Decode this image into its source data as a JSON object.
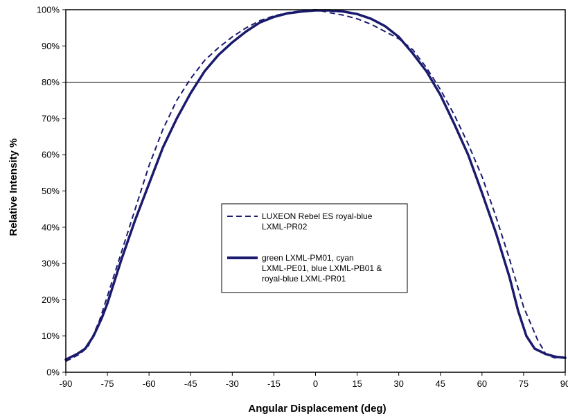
{
  "chart_data": {
    "type": "line",
    "xlabel": "Angular Displacement (deg)",
    "ylabel": "Relative Intensity %",
    "xlim": [
      -90,
      90
    ],
    "ylim": [
      0,
      100
    ],
    "x_ticks": [
      -90,
      -75,
      -60,
      -45,
      -30,
      -15,
      0,
      15,
      30,
      45,
      60,
      75,
      90
    ],
    "x_tick_labels": [
      "-90",
      "-75",
      "-60",
      "-45",
      "-30",
      "-15",
      "0",
      "15",
      "30",
      "45",
      "60",
      "75",
      "90"
    ],
    "y_ticks": [
      0,
      10,
      20,
      30,
      40,
      50,
      60,
      70,
      80,
      90,
      100
    ],
    "y_tick_labels": [
      "0%",
      "10%",
      "20%",
      "30%",
      "40%",
      "50%",
      "60%",
      "70%",
      "80%",
      "90%",
      "100%"
    ],
    "gridlines_y": [
      80
    ],
    "legend_position": "center",
    "series": [
      {
        "name": "LUXEON Rebel ES royal-blue LXML-PR02",
        "legend_lines": [
          "LUXEON Rebel ES royal-blue",
          "LXML-PR02"
        ],
        "style": "dashed",
        "color": "#1a1a6e",
        "points": [
          [
            -90,
            3
          ],
          [
            -85,
            5
          ],
          [
            -82,
            7
          ],
          [
            -78,
            14
          ],
          [
            -75,
            21
          ],
          [
            -70,
            33
          ],
          [
            -65,
            45
          ],
          [
            -60,
            57
          ],
          [
            -55,
            67
          ],
          [
            -50,
            75
          ],
          [
            -45,
            81
          ],
          [
            -40,
            86
          ],
          [
            -35,
            89.5
          ],
          [
            -30,
            92.5
          ],
          [
            -25,
            95
          ],
          [
            -20,
            97
          ],
          [
            -15,
            98.3
          ],
          [
            -10,
            99.2
          ],
          [
            -5,
            99.7
          ],
          [
            0,
            100
          ],
          [
            5,
            99.2
          ],
          [
            10,
            98.5
          ],
          [
            15,
            97.5
          ],
          [
            20,
            96
          ],
          [
            25,
            94
          ],
          [
            30,
            92
          ],
          [
            35,
            89
          ],
          [
            40,
            84
          ],
          [
            45,
            78
          ],
          [
            50,
            71
          ],
          [
            55,
            63
          ],
          [
            60,
            54
          ],
          [
            65,
            43
          ],
          [
            70,
            31
          ],
          [
            75,
            18
          ],
          [
            80,
            9
          ],
          [
            83,
            5
          ],
          [
            86,
            4
          ],
          [
            90,
            4
          ]
        ]
      },
      {
        "name": "green LXML-PM01, cyan LXML-PE01, blue LXML-PB01 & royal-blue LXML-PR01",
        "legend_lines": [
          "green LXML-PM01, cyan",
          "LXML-PE01, blue LXML-PB01 &",
          "royal-blue LXML-PR01"
        ],
        "style": "solid",
        "color": "#1a1a6e",
        "points": [
          [
            -90,
            3.5
          ],
          [
            -86,
            5
          ],
          [
            -83,
            6.5
          ],
          [
            -80,
            10
          ],
          [
            -77,
            15
          ],
          [
            -75,
            19
          ],
          [
            -70,
            31
          ],
          [
            -65,
            42
          ],
          [
            -60,
            52
          ],
          [
            -55,
            62
          ],
          [
            -50,
            70
          ],
          [
            -45,
            77
          ],
          [
            -40,
            83
          ],
          [
            -35,
            87.5
          ],
          [
            -30,
            91
          ],
          [
            -25,
            94
          ],
          [
            -20,
            96.5
          ],
          [
            -15,
            98
          ],
          [
            -10,
            99
          ],
          [
            -5,
            99.5
          ],
          [
            0,
            99.8
          ],
          [
            5,
            99.8
          ],
          [
            10,
            99.5
          ],
          [
            15,
            98.8
          ],
          [
            20,
            97.5
          ],
          [
            25,
            95.5
          ],
          [
            30,
            92.5
          ],
          [
            35,
            88
          ],
          [
            40,
            83
          ],
          [
            45,
            76.5
          ],
          [
            50,
            68.5
          ],
          [
            55,
            60
          ],
          [
            60,
            49.5
          ],
          [
            65,
            38.5
          ],
          [
            70,
            26
          ],
          [
            73,
            17
          ],
          [
            76,
            10
          ],
          [
            79,
            6.5
          ],
          [
            83,
            5
          ],
          [
            87,
            4.2
          ],
          [
            90,
            4
          ]
        ]
      }
    ]
  }
}
